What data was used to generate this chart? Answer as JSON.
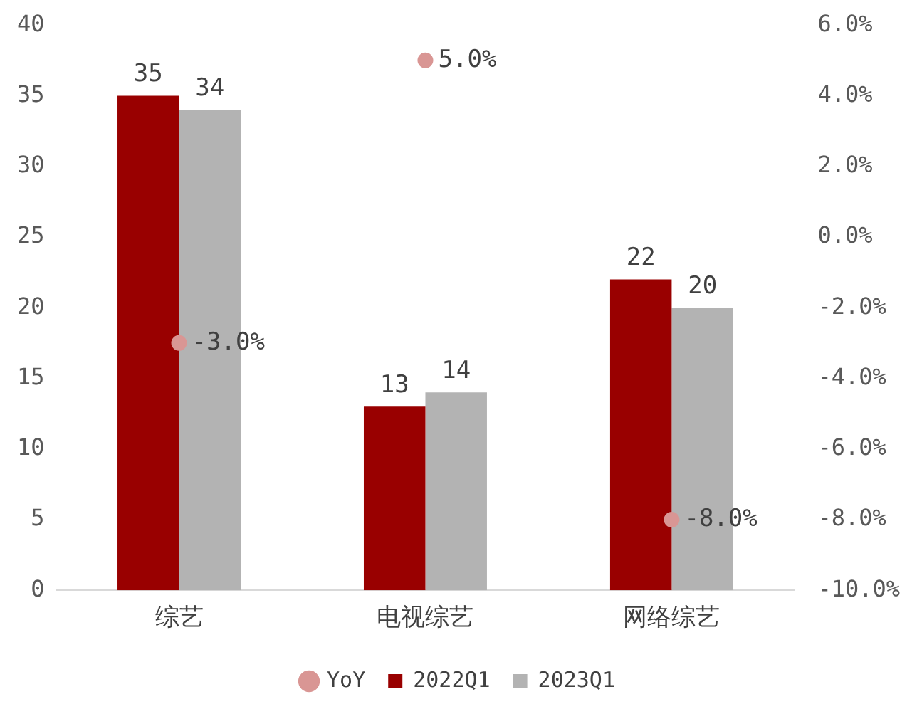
{
  "chart_data": {
    "type": "bar",
    "categories": [
      "综艺",
      "电视综艺",
      "网络综艺"
    ],
    "series": [
      {
        "name": "2022Q1",
        "color": "#990000",
        "values": [
          35,
          13,
          22
        ]
      },
      {
        "name": "2023Q1",
        "color": "#b3b3b3",
        "values": [
          34,
          14,
          20
        ]
      },
      {
        "name": "YoY",
        "type": "scatter",
        "axis": "y2",
        "color": "#d99694",
        "x": [
          "综艺",
          "电视综艺",
          "网络综艺"
        ],
        "values": [
          -3.0,
          5.0,
          -8.0
        ],
        "value_labels": [
          "-3.0%",
          "5.0%",
          "-8.0%"
        ]
      }
    ],
    "ylim": [
      0,
      40
    ],
    "yticks": [
      0,
      5,
      10,
      15,
      20,
      25,
      30,
      35,
      40
    ],
    "y2lim": [
      -10,
      6
    ],
    "y2ticks": [
      {
        "value": -10,
        "label": "-10.0%"
      },
      {
        "value": -8,
        "label": "-8.0%"
      },
      {
        "value": -6,
        "label": "-6.0%"
      },
      {
        "value": -4,
        "label": "-4.0%"
      },
      {
        "value": -2,
        "label": "-2.0%"
      },
      {
        "value": 0,
        "label": "0.0%"
      },
      {
        "value": 2,
        "label": "2.0%"
      },
      {
        "value": 4,
        "label": "4.0%"
      },
      {
        "value": 6,
        "label": "6.0%"
      }
    ],
    "data_labels": true,
    "grid": false,
    "legend": "bottom",
    "marker": "circle"
  }
}
